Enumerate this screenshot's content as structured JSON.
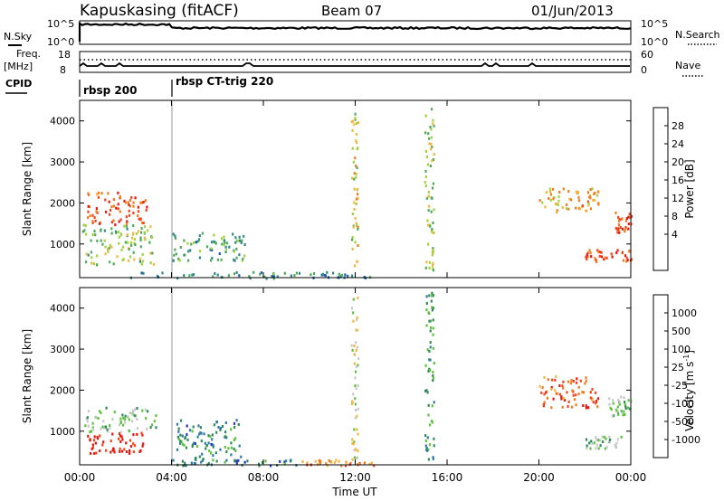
{
  "header": {
    "station": "Kapuskasing (fitACF)",
    "beam": "Beam 07",
    "date": "01/Jun/2013"
  },
  "status_panels": {
    "nsky_label": "N.Sky",
    "nsky_ticks": [
      "10^5",
      "10^0"
    ],
    "nsearch_label": "N.Search",
    "nsearch_ticks": [
      "10^5",
      "10^0"
    ],
    "freq_label_line1": "Freq.",
    "freq_label_line2": "[MHz]",
    "freq_ticks": [
      "18",
      "8"
    ],
    "nave_label": "Nave",
    "nave_ticks": [
      "60",
      "0"
    ],
    "cpid_label": "CPID",
    "cpid_segments": [
      {
        "label": "rbsp 200",
        "start_hour": 0
      },
      {
        "label": "rbsp CT-trig 220",
        "start_hour": 4
      }
    ]
  },
  "chart_data": [
    {
      "type": "heatmap",
      "title": "Power",
      "xlabel": "Time UT",
      "ylabel": "Slant Range [km]",
      "x_ticks": [
        "00:00",
        "04:00",
        "08:00",
        "12:00",
        "16:00",
        "20:00",
        "00:00"
      ],
      "xlim_hours": [
        0,
        24
      ],
      "y_ticks": [
        1000,
        2000,
        3000,
        4000
      ],
      "ylim": [
        180,
        4500
      ],
      "colorbar": {
        "label": "Power [dB]",
        "tick_labels": [
          "28",
          "24",
          "20",
          "16",
          "12",
          "8",
          "4"
        ],
        "colors": [
          "#e8160d",
          "#f4421a",
          "#f47a1c",
          "#f4b53a",
          "#9fd23c",
          "#4caa5a",
          "#2e8a82",
          "#1d5aae",
          "#1010d8"
        ],
        "range": [
          0,
          30
        ]
      },
      "regions": [
        {
          "t": [
            0.1,
            3.2
          ],
          "r": [
            500,
            1500
          ],
          "level": 0.55
        },
        {
          "t": [
            0.3,
            2.9
          ],
          "r": [
            1500,
            2300
          ],
          "level": 0.2
        },
        {
          "t": [
            4.0,
            7.2
          ],
          "r": [
            600,
            1300
          ],
          "level": 0.65
        },
        {
          "t": [
            2.0,
            12.8
          ],
          "r": [
            190,
            340
          ],
          "level": 0.7
        },
        {
          "t": [
            22.0,
            24.0
          ],
          "r": [
            600,
            900
          ],
          "level": 0.15
        },
        {
          "t": [
            23.3,
            24.0
          ],
          "r": [
            1300,
            1800
          ],
          "level": 0.2
        },
        {
          "t": [
            20.0,
            22.6
          ],
          "r": [
            1800,
            2400
          ],
          "level": 0.35
        },
        {
          "t": [
            15.0,
            15.4
          ],
          "r": [
            300,
            4400
          ],
          "level": 0.5
        },
        {
          "t": [
            11.8,
            12.1
          ],
          "r": [
            300,
            4300
          ],
          "level": 0.45
        }
      ]
    },
    {
      "type": "heatmap",
      "title": "Velocity",
      "xlabel": "Time UT",
      "ylabel": "Slant Range [km]",
      "x_ticks": [
        "00:00",
        "04:00",
        "08:00",
        "12:00",
        "16:00",
        "20:00",
        "00:00"
      ],
      "xlim_hours": [
        0,
        24
      ],
      "y_ticks": [
        1000,
        2000,
        3000,
        4000
      ],
      "ylim": [
        180,
        4500
      ],
      "colorbar": {
        "label": "Velocity [m s^-1]",
        "tick_labels": [
          "1000",
          "500",
          "100",
          "25",
          "-25",
          "-100",
          "-500",
          "-1000"
        ],
        "colors": [
          "#2334c8",
          "#2f7aa8",
          "#2e8a5a",
          "#5cc23c",
          "#c8c8c8",
          "#f4b53a",
          "#f47a1c",
          "#f4421a",
          "#e8160d"
        ],
        "range": [
          -1200,
          1200
        ]
      },
      "regions": [
        {
          "t": [
            0.2,
            2.8
          ],
          "r": [
            480,
            1000
          ],
          "level": 0.95
        },
        {
          "t": [
            0.2,
            3.3
          ],
          "r": [
            1000,
            1600
          ],
          "level": 0.4
        },
        {
          "t": [
            4.1,
            7.0
          ],
          "r": [
            300,
            1300
          ],
          "level": 0.25
        },
        {
          "t": [
            4.0,
            9.5
          ],
          "r": [
            190,
            330
          ],
          "level": 0.22
        },
        {
          "t": [
            9.5,
            12.8
          ],
          "r": [
            190,
            330
          ],
          "level": 0.7
        },
        {
          "t": [
            22.0,
            23.6
          ],
          "r": [
            600,
            900
          ],
          "level": 0.4
        },
        {
          "t": [
            23.0,
            24.0
          ],
          "r": [
            1400,
            1900
          ],
          "level": 0.4
        },
        {
          "t": [
            20.0,
            22.6
          ],
          "r": [
            1600,
            2400
          ],
          "level": 0.8
        },
        {
          "t": [
            15.0,
            15.4
          ],
          "r": [
            300,
            4400
          ],
          "level": 0.3
        },
        {
          "t": [
            11.8,
            12.1
          ],
          "r": [
            300,
            4300
          ],
          "level": 0.5
        }
      ]
    }
  ]
}
